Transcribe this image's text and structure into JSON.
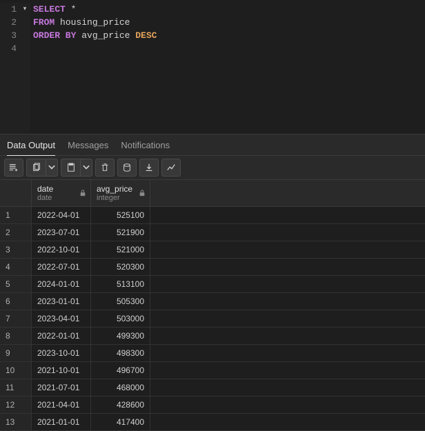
{
  "editor": {
    "lines": [
      {
        "num": "1",
        "fold": "▾",
        "tokens": [
          {
            "t": "SELECT",
            "c": "kw"
          },
          {
            "t": " ",
            "c": "ident"
          },
          {
            "t": "*",
            "c": "star"
          }
        ]
      },
      {
        "num": "2",
        "fold": "",
        "tokens": [
          {
            "t": "FROM",
            "c": "kw"
          },
          {
            "t": " housing_price",
            "c": "ident"
          }
        ]
      },
      {
        "num": "3",
        "fold": "",
        "tokens": [
          {
            "t": "ORDER BY",
            "c": "kw"
          },
          {
            "t": " avg_price ",
            "c": "ident"
          },
          {
            "t": "DESC",
            "c": "desc"
          }
        ]
      },
      {
        "num": "4",
        "fold": "",
        "tokens": []
      }
    ]
  },
  "tabs": [
    {
      "label": "Data Output",
      "active": true
    },
    {
      "label": "Messages",
      "active": false
    },
    {
      "label": "Notifications",
      "active": false
    }
  ],
  "columns": [
    {
      "name": "date",
      "type": "date",
      "width": 86
    },
    {
      "name": "avg_price",
      "type": "integer",
      "width": 86
    }
  ],
  "rows": [
    {
      "n": "1",
      "date": "2022-04-01",
      "avg_price": "525100"
    },
    {
      "n": "2",
      "date": "2023-07-01",
      "avg_price": "521900"
    },
    {
      "n": "3",
      "date": "2022-10-01",
      "avg_price": "521000"
    },
    {
      "n": "4",
      "date": "2022-07-01",
      "avg_price": "520300"
    },
    {
      "n": "5",
      "date": "2024-01-01",
      "avg_price": "513100"
    },
    {
      "n": "6",
      "date": "2023-01-01",
      "avg_price": "505300"
    },
    {
      "n": "7",
      "date": "2023-04-01",
      "avg_price": "503000"
    },
    {
      "n": "8",
      "date": "2022-01-01",
      "avg_price": "499300"
    },
    {
      "n": "9",
      "date": "2023-10-01",
      "avg_price": "498300"
    },
    {
      "n": "10",
      "date": "2021-10-01",
      "avg_price": "496700"
    },
    {
      "n": "11",
      "date": "2021-07-01",
      "avg_price": "468000"
    },
    {
      "n": "12",
      "date": "2021-04-01",
      "avg_price": "428600"
    },
    {
      "n": "13",
      "date": "2021-01-01",
      "avg_price": "417400"
    }
  ],
  "colors": {
    "bg": "#1e1e1e",
    "panel": "#2a2a2a",
    "border": "#3a3a3a",
    "keyword": "#c678dd",
    "desc": "#e5a35c",
    "text": "#d4d4d4",
    "muted": "#8a8a8a"
  }
}
